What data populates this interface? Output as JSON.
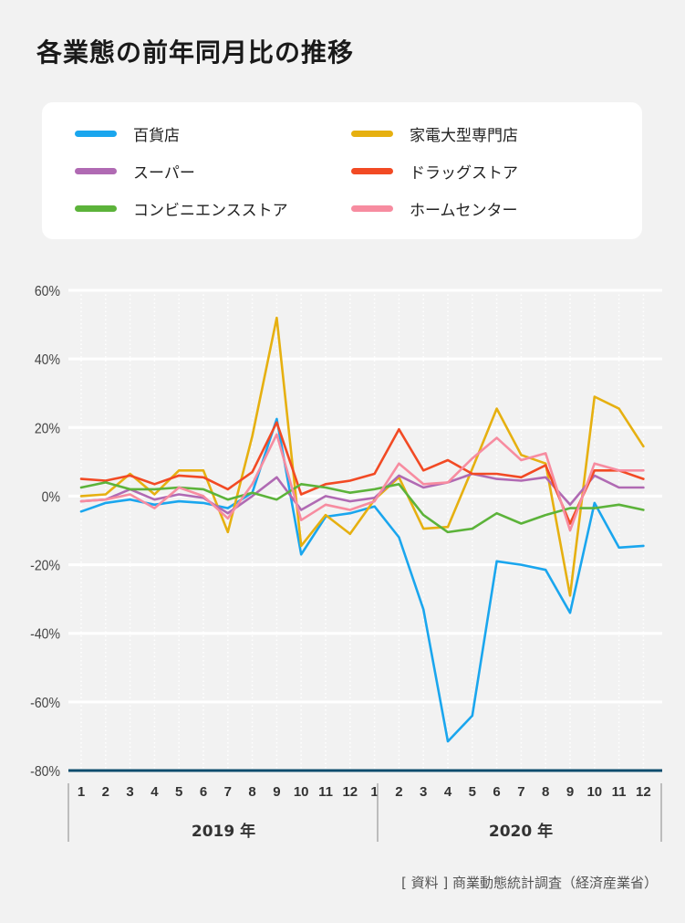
{
  "title": "各業態の前年同月比の推移",
  "source": "[ 資料 ] 商業動態統計調査（経済産業省）",
  "legend": [
    {
      "label": "百貨店",
      "color": "#1aa6ee"
    },
    {
      "label": "家電大型専門店",
      "color": "#e6b010"
    },
    {
      "label": "スーパー",
      "color": "#b06ab3"
    },
    {
      "label": "ドラッグストア",
      "color": "#f24a24"
    },
    {
      "label": "コンビニエンスストア",
      "color": "#5cb33a"
    },
    {
      "label": "ホームセンター",
      "color": "#f78ca0"
    }
  ],
  "chart_data": {
    "type": "line",
    "title": "各業態の前年同月比の推移",
    "xlabel": "",
    "ylabel": "",
    "ylim": [
      -80,
      60
    ],
    "yticks": [
      60,
      40,
      20,
      0,
      -20,
      -40,
      -60,
      -80
    ],
    "ytick_labels": [
      "60%",
      "40%",
      "20%",
      "0%",
      "-20%",
      "-40%",
      "-60%",
      "-80%"
    ],
    "categories": [
      "1",
      "2",
      "3",
      "4",
      "5",
      "6",
      "7",
      "8",
      "9",
      "10",
      "11",
      "12",
      "1",
      "2",
      "3",
      "4",
      "5",
      "6",
      "7",
      "8",
      "9",
      "10",
      "11",
      "12"
    ],
    "year_labels": [
      "2019 年",
      "2020 年"
    ],
    "series": [
      {
        "name": "百貨店",
        "color": "#1aa6ee",
        "values": [
          -4.5,
          -2,
          -1,
          -2.5,
          -1.5,
          -2,
          -3.5,
          1,
          22.5,
          -17,
          -6,
          -5,
          -3,
          -12,
          -33,
          -71.5,
          -64,
          -19,
          -20,
          -21.5,
          -34,
          -2,
          -15,
          -14.5
        ]
      },
      {
        "name": "家電大型専門店",
        "color": "#e6b010",
        "values": [
          0,
          0.5,
          6.5,
          0.5,
          7.5,
          7.5,
          -10.5,
          17.5,
          52,
          -14.5,
          -5.5,
          -11,
          -1,
          5.5,
          -9.5,
          -9,
          8,
          25.5,
          12,
          9.5,
          -29,
          29,
          25.5,
          14.5
        ]
      },
      {
        "name": "スーパー",
        "color": "#b06ab3",
        "values": [
          -1.5,
          -1,
          2,
          -1,
          0.5,
          -0.5,
          -5,
          0,
          5.5,
          -4,
          0,
          -1.5,
          -0.5,
          6,
          2.5,
          4,
          6.5,
          5,
          4.5,
          5.5,
          -2.5,
          6,
          2.5,
          2.5
        ]
      },
      {
        "name": "ドラッグストア",
        "color": "#f24a24",
        "values": [
          5,
          4.5,
          6,
          3.5,
          6,
          5.5,
          2,
          7,
          21.5,
          0.5,
          3.5,
          4.5,
          6.5,
          19.5,
          7.5,
          10.5,
          6.5,
          6.5,
          5.5,
          9,
          -8,
          7.5,
          7.5,
          5
        ]
      },
      {
        "name": "コンビニエンスストア",
        "color": "#5cb33a",
        "values": [
          2.5,
          4,
          2,
          2,
          2.5,
          2,
          -1,
          1,
          -1,
          3.5,
          2.5,
          1,
          2,
          3.5,
          -5.5,
          -10.5,
          -9.5,
          -5,
          -8,
          -5.5,
          -3.5,
          -3.5,
          -2.5,
          -4
        ]
      },
      {
        "name": "ホームセンター",
        "color": "#f78ca0",
        "values": [
          -1.5,
          -1,
          0.5,
          -3.5,
          2.5,
          0,
          -6.5,
          3.5,
          18,
          -7,
          -2.5,
          -4,
          -1.5,
          9.5,
          3.5,
          4,
          11,
          17,
          10.5,
          12.5,
          -10,
          9.5,
          7.5,
          7.5
        ]
      }
    ]
  }
}
